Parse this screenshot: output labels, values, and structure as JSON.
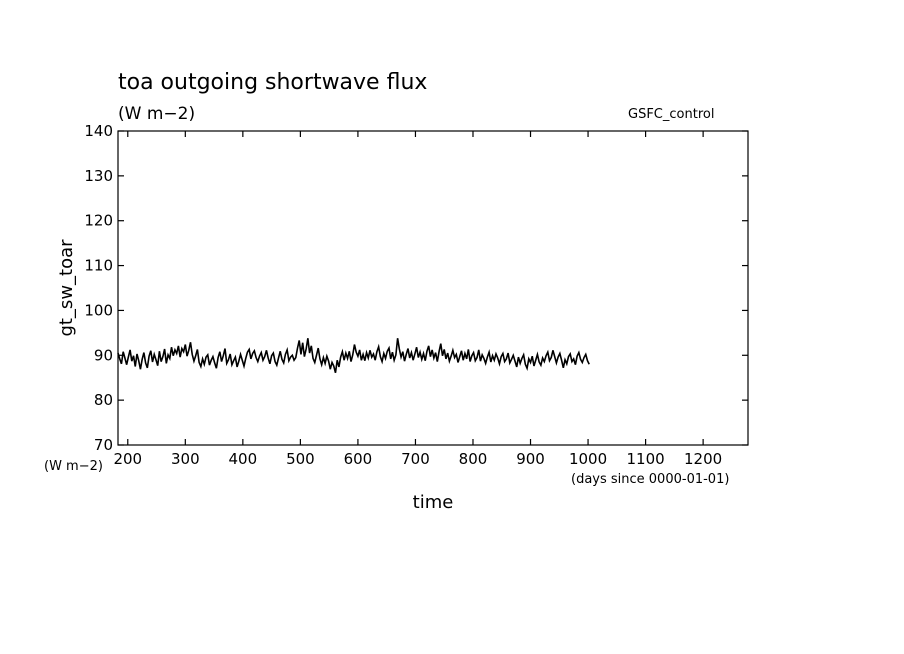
{
  "chart_data": {
    "type": "line",
    "title": "toa outgoing shortwave flux",
    "subtitle": "(W m−2)",
    "dataset_label": "GSFC_control",
    "ylabel": "gt_sw_toar",
    "xlabel": "time",
    "y_units": "(W m−2)",
    "x_units": "(days since 0000-01-01)",
    "xlim": [
      183,
      1278
    ],
    "ylim": [
      70,
      140
    ],
    "x_ticks": [
      200,
      300,
      400,
      500,
      600,
      700,
      800,
      900,
      1000,
      1100,
      1200
    ],
    "y_ticks": [
      70,
      80,
      90,
      100,
      110,
      120,
      130,
      140
    ],
    "grid": false,
    "series": [
      {
        "name": "GSFC_control",
        "x_start": 183,
        "x_step": 3,
        "values": [
          90.5,
          89.2,
          88.1,
          90.8,
          89.4,
          87.9,
          89.6,
          91.2,
          88.7,
          89.9,
          87.5,
          90.3,
          88.8,
          86.9,
          89.1,
          90.6,
          88.3,
          87.2,
          89.8,
          91.0,
          88.5,
          90.2,
          89.0,
          87.7,
          90.9,
          88.6,
          89.7,
          91.4,
          88.2,
          90.1,
          89.3,
          91.8,
          89.9,
          91.2,
          90.4,
          92.1,
          89.6,
          91.5,
          90.8,
          92.4,
          89.8,
          91.1,
          92.9,
          90.2,
          88.7,
          89.9,
          91.3,
          88.4,
          87.5,
          89.2,
          88.0,
          89.6,
          90.1,
          87.8,
          88.9,
          89.7,
          88.3,
          87.1,
          89.5,
          90.8,
          88.6,
          89.9,
          91.5,
          88.2,
          89.0,
          90.3,
          87.9,
          88.8,
          89.6,
          87.4,
          88.7,
          90.2,
          88.9,
          87.6,
          89.3,
          90.7,
          91.3,
          89.2,
          90.4,
          91.0,
          89.5,
          88.6,
          89.8,
          90.6,
          88.9,
          89.7,
          91.1,
          89.4,
          88.1,
          89.9,
          90.5,
          88.6,
          87.8,
          89.4,
          90.9,
          89.1,
          88.3,
          90.2,
          91.2,
          88.8,
          89.6,
          90.0,
          88.9,
          89.5,
          91.6,
          93.3,
          90.2,
          92.8,
          89.7,
          91.4,
          93.8,
          90.5,
          92.1,
          89.3,
          88.4,
          90.0,
          91.6,
          89.2,
          87.9,
          89.5,
          88.2,
          89.8,
          88.7,
          86.9,
          88.4,
          87.6,
          86.1,
          88.9,
          87.4,
          89.6,
          90.8,
          88.9,
          90.5,
          89.3,
          90.9,
          88.6,
          90.1,
          92.4,
          90.7,
          89.8,
          91.2,
          88.9,
          90.2,
          88.8,
          90.6,
          89.4,
          91.1,
          89.6,
          90.3,
          88.9,
          90.8,
          91.9,
          89.7,
          88.6,
          90.4,
          89.3,
          90.9,
          91.6,
          89.2,
          90.7,
          88.9,
          90.1,
          93.8,
          91.4,
          89.6,
          90.8,
          88.7,
          90.2,
          91.5,
          89.4,
          90.6,
          88.9,
          90.3,
          91.8,
          89.5,
          90.7,
          89.1,
          90.4,
          88.8,
          90.9,
          92.1,
          89.7,
          91.2,
          89.4,
          90.6,
          88.6,
          90.8,
          92.6,
          89.9,
          91.3,
          89.2,
          90.5,
          88.7,
          89.8,
          91.1,
          89.5,
          90.2,
          88.4,
          89.7,
          91.0,
          88.9,
          90.4,
          89.2,
          91.3,
          88.6,
          89.9,
          90.6,
          88.8,
          89.5,
          91.2,
          88.7,
          90.1,
          89.3,
          88.2,
          89.6,
          90.7,
          88.5,
          89.9,
          88.9,
          90.3,
          89.4,
          88.1,
          89.7,
          90.4,
          88.6,
          89.2,
          90.5,
          88.3,
          89.1,
          90.0,
          88.7,
          87.4,
          89.6,
          88.2,
          89.3,
          90.1,
          88.0,
          87.1,
          89.2,
          88.4,
          89.8,
          87.6,
          88.9,
          90.2,
          88.5,
          87.8,
          89.4,
          88.6,
          89.9,
          90.7,
          88.8,
          89.5,
          91.1,
          89.7,
          88.3,
          89.6,
          90.4,
          88.9,
          87.2,
          89.0,
          88.1,
          89.7,
          90.3,
          88.6,
          89.2,
          87.9,
          89.8,
          90.6,
          89.1,
          88.4,
          89.5,
          90.2,
          88.8,
          88.0
        ]
      }
    ]
  }
}
